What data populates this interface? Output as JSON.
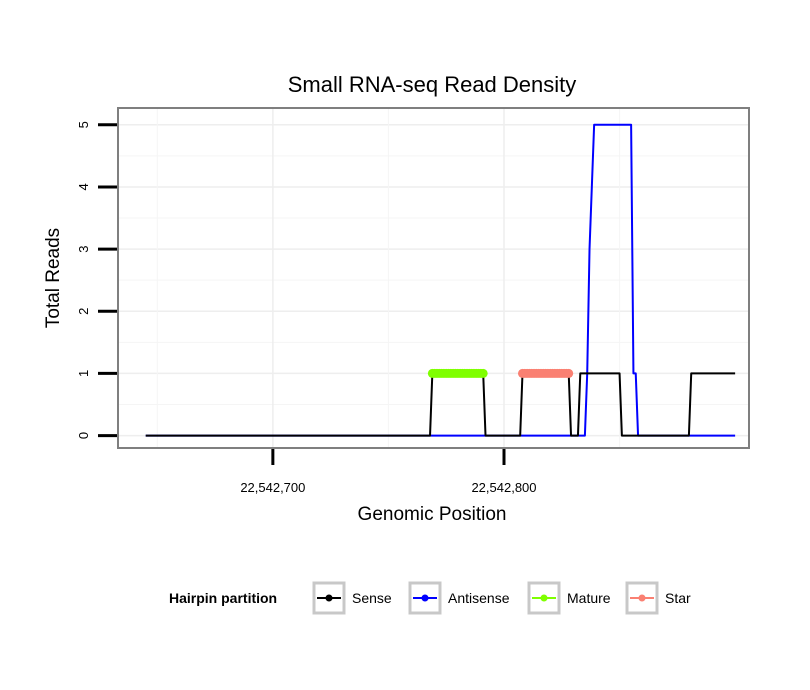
{
  "chart_data": {
    "type": "line",
    "title": "Small RNA-seq Read Density",
    "xlabel": "Genomic Position",
    "ylabel": "Total Reads",
    "xlim": [
      22542633,
      22542906
    ],
    "ylim": [
      -0.2,
      5.27
    ],
    "x_ticks": [
      {
        "value": 22542700,
        "label": "22,542,700"
      },
      {
        "value": 22542800,
        "label": "22,542,800"
      }
    ],
    "y_ticks": [
      {
        "value": 0,
        "label": "0"
      },
      {
        "value": 1,
        "label": "1"
      },
      {
        "value": 2,
        "label": "2"
      },
      {
        "value": 3,
        "label": "3"
      },
      {
        "value": 4,
        "label": "4"
      },
      {
        "value": 5,
        "label": "5"
      }
    ],
    "grid": true,
    "legend": {
      "title": "Hairpin partition",
      "position": "bottom",
      "entries": [
        {
          "name": "Sense",
          "color": "#000000"
        },
        {
          "name": "Antisense",
          "color": "#0000ff"
        },
        {
          "name": "Mature",
          "color": "#7fff00"
        },
        {
          "name": "Star",
          "color": "#fa8072"
        }
      ]
    },
    "series": [
      {
        "name": "Sense",
        "color": "#000000",
        "x": [
          22542645,
          22542768,
          22542769,
          22542791,
          22542792,
          22542807,
          22542808,
          22542828,
          22542829,
          22542832,
          22542833,
          22542850,
          22542851,
          22542873,
          22542874,
          22542880,
          22542881,
          22542900
        ],
        "y": [
          0,
          0,
          1,
          1,
          0,
          0,
          1,
          1,
          0,
          0,
          1,
          1,
          0,
          0,
          0,
          0,
          1,
          1
        ]
      },
      {
        "name": "Antisense",
        "color": "#0000ff",
        "x": [
          22542645,
          22542764,
          22542765,
          22542834,
          22542835,
          22542836,
          22542837,
          22542838,
          22542839,
          22542855,
          22542856,
          22542857,
          22542858,
          22542900
        ],
        "y": [
          0,
          0,
          0,
          0,
          0,
          1,
          3,
          4,
          5,
          5,
          1,
          1,
          0,
          0
        ]
      },
      {
        "name": "Mature",
        "color": "#7fff00",
        "x": [
          22542769,
          22542770,
          22542771,
          22542772,
          22542773,
          22542774,
          22542775,
          22542776,
          22542777,
          22542778,
          22542779,
          22542780,
          22542781,
          22542782,
          22542783,
          22542784,
          22542785,
          22542786,
          22542787,
          22542788,
          22542789,
          22542790,
          22542791
        ],
        "y": [
          1,
          1,
          1,
          1,
          1,
          1,
          1,
          1,
          1,
          1,
          1,
          1,
          1,
          1,
          1,
          1,
          1,
          1,
          1,
          1,
          1,
          1,
          1
        ]
      },
      {
        "name": "Star",
        "color": "#fa8072",
        "x": [
          22542808,
          22542809,
          22542810,
          22542811,
          22542812,
          22542813,
          22542814,
          22542815,
          22542816,
          22542817,
          22542818,
          22542819,
          22542820,
          22542821,
          22542822,
          22542823,
          22542824,
          22542825,
          22542826,
          22542827,
          22542828
        ],
        "y": [
          1,
          1,
          1,
          1,
          1,
          1,
          1,
          1,
          1,
          1,
          1,
          1,
          1,
          1,
          1,
          1,
          1,
          1,
          1,
          1,
          1
        ]
      }
    ]
  }
}
